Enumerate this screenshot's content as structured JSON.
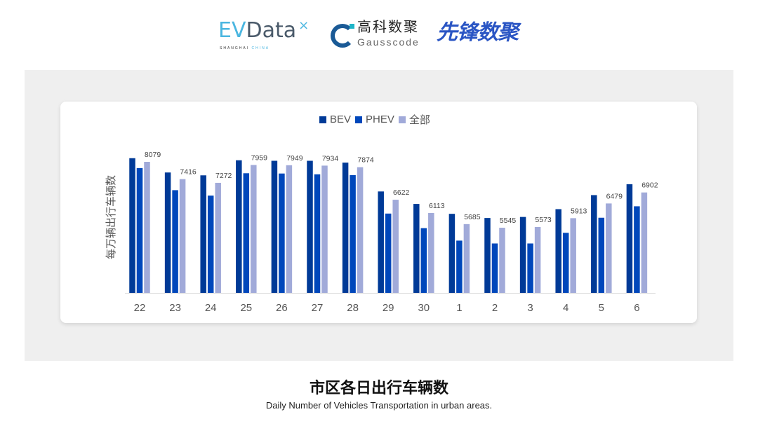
{
  "logos": {
    "evdata": {
      "ev": "EV",
      "rest": "Data",
      "x": "×",
      "sub_a": "SHANGHAI ",
      "sub_b": "CHINA"
    },
    "gausscode": {
      "cn": "高科数聚",
      "en": "Gausscode"
    },
    "xianfeng": "先锋数聚"
  },
  "caption": {
    "title": "市区各日出行车辆数",
    "subtitle": "Daily Number of Vehicles Transportation in urban areas."
  },
  "chart_data": {
    "type": "bar",
    "title": "",
    "xlabel": "",
    "ylabel": "每万辆出行车辆数",
    "categories": [
      "22",
      "23",
      "24",
      "25",
      "26",
      "27",
      "28",
      "29",
      "30",
      "1",
      "2",
      "3",
      "4",
      "5",
      "6"
    ],
    "series": [
      {
        "name": "BEV",
        "color": "#003a97",
        "values": [
          8220,
          7670,
          7560,
          8140,
          8120,
          8120,
          8050,
          6940,
          6460,
          6080,
          5920,
          5960,
          6260,
          6800,
          7220
        ]
      },
      {
        "name": "PHEV",
        "color": "#0047bb",
        "values": [
          7840,
          6990,
          6780,
          7640,
          7630,
          7600,
          7570,
          6090,
          5530,
          5050,
          4940,
          4940,
          5350,
          5930,
          6370
        ]
      },
      {
        "name": "全部",
        "color": "#a1aad9",
        "values": [
          8079,
          7416,
          7272,
          7959,
          7949,
          7934,
          7874,
          6622,
          6113,
          5685,
          5545,
          5573,
          5913,
          6479,
          6902
        ],
        "data_labels": true
      }
    ],
    "ylim": [
      3040,
      8500
    ],
    "grid": false,
    "legend": "top-center"
  }
}
